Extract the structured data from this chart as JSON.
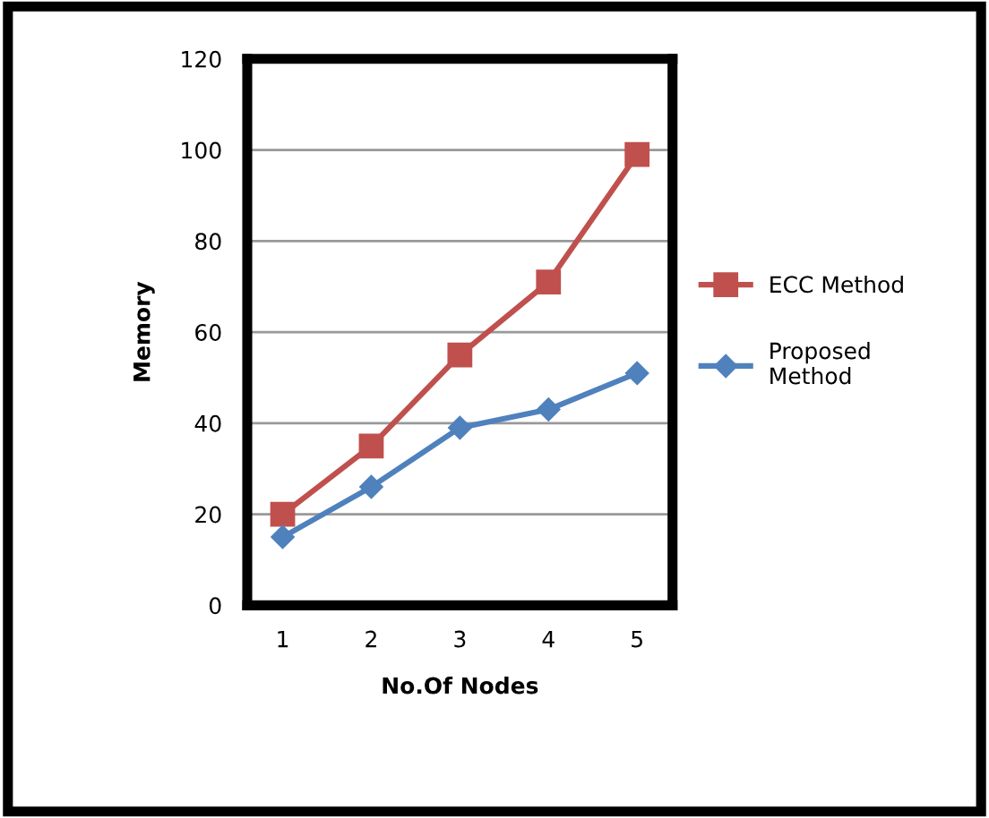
{
  "chart_data": {
    "type": "line",
    "xlabel": "No.Of Nodes",
    "ylabel": "Memory",
    "categories": [
      "1",
      "2",
      "3",
      "4",
      "5"
    ],
    "series": [
      {
        "name": "ECC Method",
        "color": "#c0504d",
        "marker": "square",
        "values": [
          20,
          35,
          55,
          71,
          99
        ]
      },
      {
        "name": "Proposed Method",
        "color": "#4f81bd",
        "marker": "diamond",
        "values": [
          15,
          26,
          39,
          43,
          51
        ]
      }
    ],
    "ylim": [
      0,
      120
    ],
    "yticks": [
      0,
      20,
      40,
      60,
      80,
      100,
      120
    ],
    "grid": "y",
    "legend": "right"
  }
}
